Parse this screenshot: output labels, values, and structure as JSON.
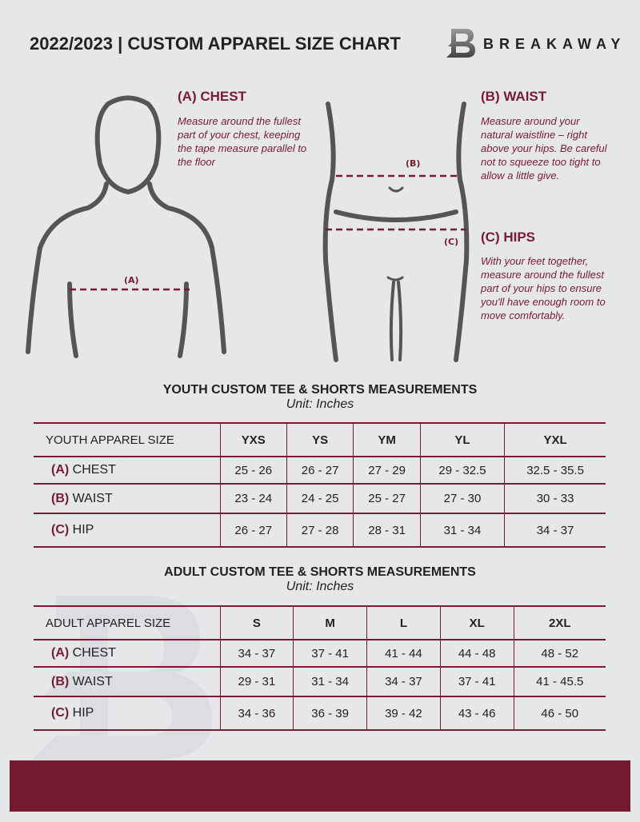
{
  "header": {
    "title": "2022/2023  |  CUSTOM APPAREL SIZE CHART",
    "brand": "BREAKAWAY"
  },
  "guides": {
    "chest": {
      "title": "(A) CHEST",
      "desc": "Measure around the fullest part of your chest, keeping the tape measure parallel to the floor",
      "marker": "(A)"
    },
    "waist": {
      "title": "(B) WAIST",
      "desc": "Measure around your natural waistline – right above your hips. Be careful not to squeeze too tight to allow a little give.",
      "marker": "(B)"
    },
    "hips": {
      "title": "(C) HIPS",
      "desc": "With your feet together, measure around the fullest part of your hips to ensure you'll have enough room to move comfortably.",
      "marker": "(C)"
    }
  },
  "colors": {
    "accent": "#7a1a32",
    "background": "#e6e7e9",
    "footer": "#731a2f"
  },
  "youth": {
    "title": "YOUTH CUSTOM TEE & SHORTS MEASUREMENTS",
    "unit": "Unit: Inches",
    "header": "YOUTH APPAREL SIZE",
    "sizes": [
      "YXS",
      "YS",
      "YM",
      "YL",
      "YXL"
    ],
    "rows": [
      {
        "letter": "(A)",
        "name": "CHEST",
        "values": [
          "25 - 26",
          "26 - 27",
          "27 - 29",
          "29 - 32.5",
          "32.5 - 35.5"
        ]
      },
      {
        "letter": "(B)",
        "name": "WAIST",
        "values": [
          "23 - 24",
          "24 - 25",
          "25 - 27",
          "27 - 30",
          "30 - 33"
        ]
      },
      {
        "letter": "(C)",
        "name": "HIP",
        "values": [
          "26 - 27",
          "27 - 28",
          "28 - 31",
          "31 - 34",
          "34 - 37"
        ]
      }
    ]
  },
  "adult": {
    "title": "ADULT CUSTOM TEE & SHORTS MEASUREMENTS",
    "unit": "Unit: Inches",
    "header": "ADULT APPAREL SIZE",
    "sizes": [
      "S",
      "M",
      "L",
      "XL",
      "2XL"
    ],
    "rows": [
      {
        "letter": "(A)",
        "name": "CHEST",
        "values": [
          "34 - 37",
          "37 - 41",
          "41 - 44",
          "44 - 48",
          "48 - 52"
        ]
      },
      {
        "letter": "(B)",
        "name": "WAIST",
        "values": [
          "29 - 31",
          "31 - 34",
          "34 - 37",
          "37 - 41",
          "41 - 45.5"
        ]
      },
      {
        "letter": "(C)",
        "name": "HIP",
        "values": [
          "34 - 36",
          "36 - 39",
          "39 - 42",
          "43 - 46",
          "46 - 50"
        ]
      }
    ]
  }
}
